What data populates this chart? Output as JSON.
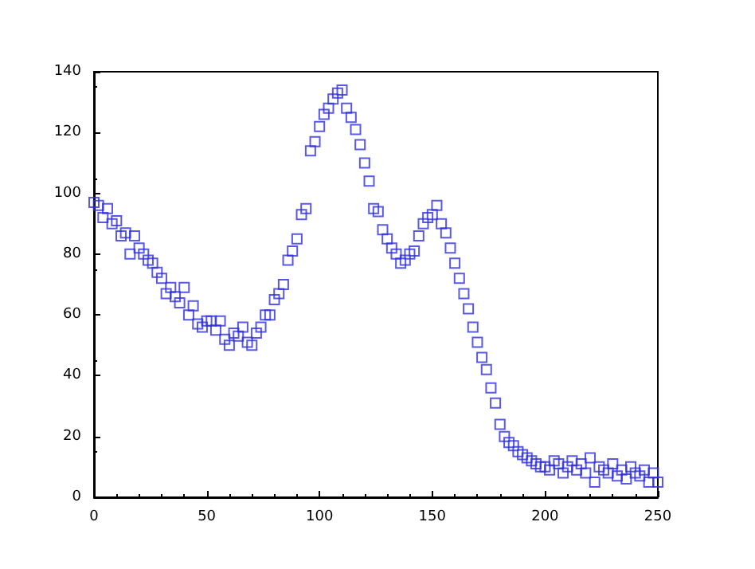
{
  "chart_data": {
    "type": "scatter",
    "marker": "square",
    "grid": false,
    "xlim": [
      0,
      250
    ],
    "xticks": [
      0,
      50,
      100,
      150,
      200,
      250
    ],
    "ylim": [
      0,
      140
    ],
    "yticks": [
      0,
      20,
      40,
      60,
      80,
      100,
      120,
      140
    ],
    "series": [
      {
        "color": "#3030e0",
        "x": [
          0,
          2,
          4,
          6,
          8,
          10,
          12,
          14,
          16,
          18,
          20,
          22,
          24,
          26,
          28,
          30,
          32,
          34,
          36,
          38,
          40,
          42,
          44,
          46,
          48,
          50,
          52,
          54,
          56,
          58,
          60,
          62,
          64,
          66,
          68,
          70,
          72,
          74,
          76,
          78,
          80,
          82,
          84,
          86,
          88,
          90,
          92,
          94,
          96,
          98,
          100,
          102,
          104,
          106,
          108,
          110,
          112,
          114,
          116,
          118,
          120,
          122,
          124,
          126,
          128,
          130,
          132,
          134,
          136,
          138,
          140,
          142,
          144,
          146,
          148,
          150,
          152,
          154,
          156,
          158,
          160,
          162,
          164,
          166,
          168,
          170,
          172,
          174,
          176,
          178,
          180,
          182,
          184,
          186,
          188,
          190,
          192,
          194,
          196,
          198,
          200,
          202,
          204,
          206,
          208,
          210,
          212,
          214,
          216,
          218,
          220,
          222,
          224,
          226,
          228,
          230,
          232,
          234,
          236,
          238,
          240,
          242,
          244,
          246,
          248,
          250
        ],
        "values": [
          97,
          96,
          92,
          95,
          90,
          91,
          86,
          87,
          80,
          86,
          82,
          80,
          78,
          77,
          74,
          72,
          67,
          69,
          66,
          64,
          69,
          60,
          63,
          57,
          56,
          58,
          58,
          55,
          58,
          52,
          50,
          54,
          53,
          56,
          51,
          50,
          54,
          56,
          60,
          60,
          65,
          67,
          70,
          78,
          81,
          85,
          93,
          95,
          114,
          117,
          122,
          126,
          128,
          131,
          133,
          134,
          128,
          125,
          121,
          116,
          110,
          104,
          95,
          94,
          88,
          85,
          82,
          80,
          77,
          78,
          80,
          81,
          86,
          90,
          92,
          93,
          96,
          90,
          87,
          82,
          77,
          72,
          67,
          62,
          56,
          51,
          46,
          42,
          36,
          31,
          24,
          20,
          18,
          17,
          15,
          14,
          13,
          12,
          11,
          10,
          10,
          9,
          12,
          11,
          8,
          10,
          12,
          9,
          11,
          8,
          13,
          5,
          10,
          9,
          8,
          11,
          7,
          9,
          6,
          10,
          8,
          7,
          9,
          5,
          8,
          5
        ]
      }
    ]
  }
}
